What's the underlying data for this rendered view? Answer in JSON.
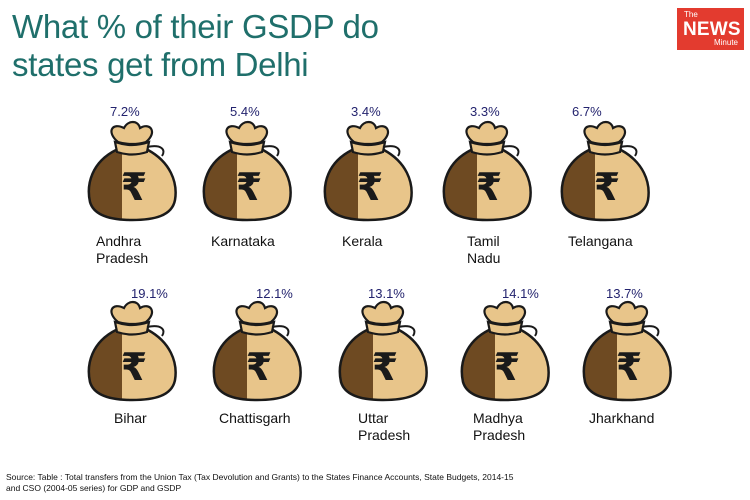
{
  "header": {
    "title_line1": "What % of their GSDP do",
    "title_line2": "states get from Delhi"
  },
  "logo": {
    "the": "The",
    "news": "NEWS",
    "minute": "Minute"
  },
  "icon": "rupee-money-bag-icon",
  "currency_symbol": "₹",
  "colors": {
    "title": "#1f6f6b",
    "bag_light": "#e8c58a",
    "bag_dark": "#6e4a22",
    "outline": "#1a1a1a",
    "value_text": "#23236e",
    "logo_bg": "#e33b2f"
  },
  "chart_data": {
    "type": "pictogram",
    "title": "What % of their GSDP do states get from Delhi",
    "unit": "% of GSDP",
    "categories": [
      "Andhra Pradesh",
      "Karnataka",
      "Kerala",
      "Tamil Nadu",
      "Telangana",
      "Bihar",
      "Chattisgarh",
      "Uttar Pradesh",
      "Madhya Pradesh",
      "Jharkhand"
    ],
    "values": [
      7.2,
      5.4,
      3.4,
      3.3,
      6.7,
      19.1,
      12.1,
      13.1,
      14.1,
      13.7
    ],
    "items": [
      {
        "state": "Andhra\nPradesh",
        "value": "7.2%"
      },
      {
        "state": "Karnataka",
        "value": "5.4%"
      },
      {
        "state": "Kerala",
        "value": "3.4%"
      },
      {
        "state": "Tamil\nNadu",
        "value": "3.3%"
      },
      {
        "state": "Telangana",
        "value": "6.7%"
      },
      {
        "state": "Bihar",
        "value": "19.1%"
      },
      {
        "state": "Chattisgarh",
        "value": "12.1%"
      },
      {
        "state": "Uttar\nPradesh",
        "value": "13.1%"
      },
      {
        "state": "Madhya\nPradesh",
        "value": "14.1%"
      },
      {
        "state": "Jharkhand",
        "value": "13.7%"
      }
    ]
  },
  "source": "Source: Table : Total transfers from the Union Tax (Tax Devolution and Grants) to the States Finance Accounts, State Budgets, 2014-15 and CSO (2004-05 series) for GDP and GSDP"
}
